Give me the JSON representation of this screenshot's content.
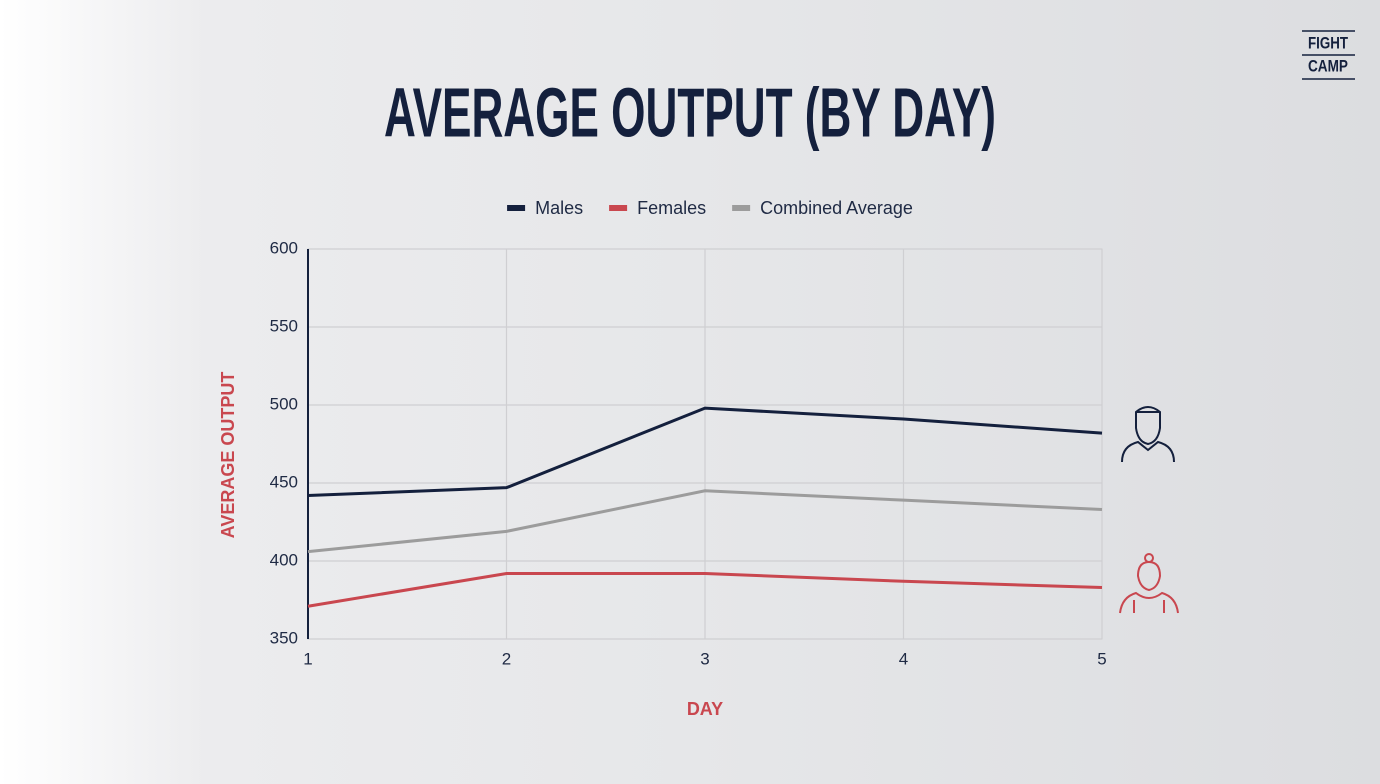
{
  "logo": [
    "FIGHT",
    "CAMP"
  ],
  "chart_data": {
    "type": "line",
    "title": "AVERAGE OUTPUT (BY DAY)",
    "x_label": "DAY",
    "y_label": "AVERAGE OUTPUT",
    "x": [
      1,
      2,
      3,
      4,
      5
    ],
    "series": [
      {
        "name": "Males",
        "color": "#14203d",
        "values": [
          442,
          447,
          498,
          491,
          482
        ]
      },
      {
        "name": "Females",
        "color": "#c9474f",
        "values": [
          371,
          392,
          392,
          387,
          383
        ]
      },
      {
        "name": "Combined Average",
        "color": "#9c9c9c",
        "values": [
          406,
          419,
          445,
          439,
          433
        ]
      }
    ],
    "xlim": [
      1,
      5
    ],
    "xticks": [
      1,
      2,
      3,
      4,
      5
    ],
    "ylim": [
      350,
      600
    ],
    "yticks": [
      350,
      400,
      450,
      500,
      550,
      600
    ],
    "grid": true,
    "legend": "top"
  }
}
